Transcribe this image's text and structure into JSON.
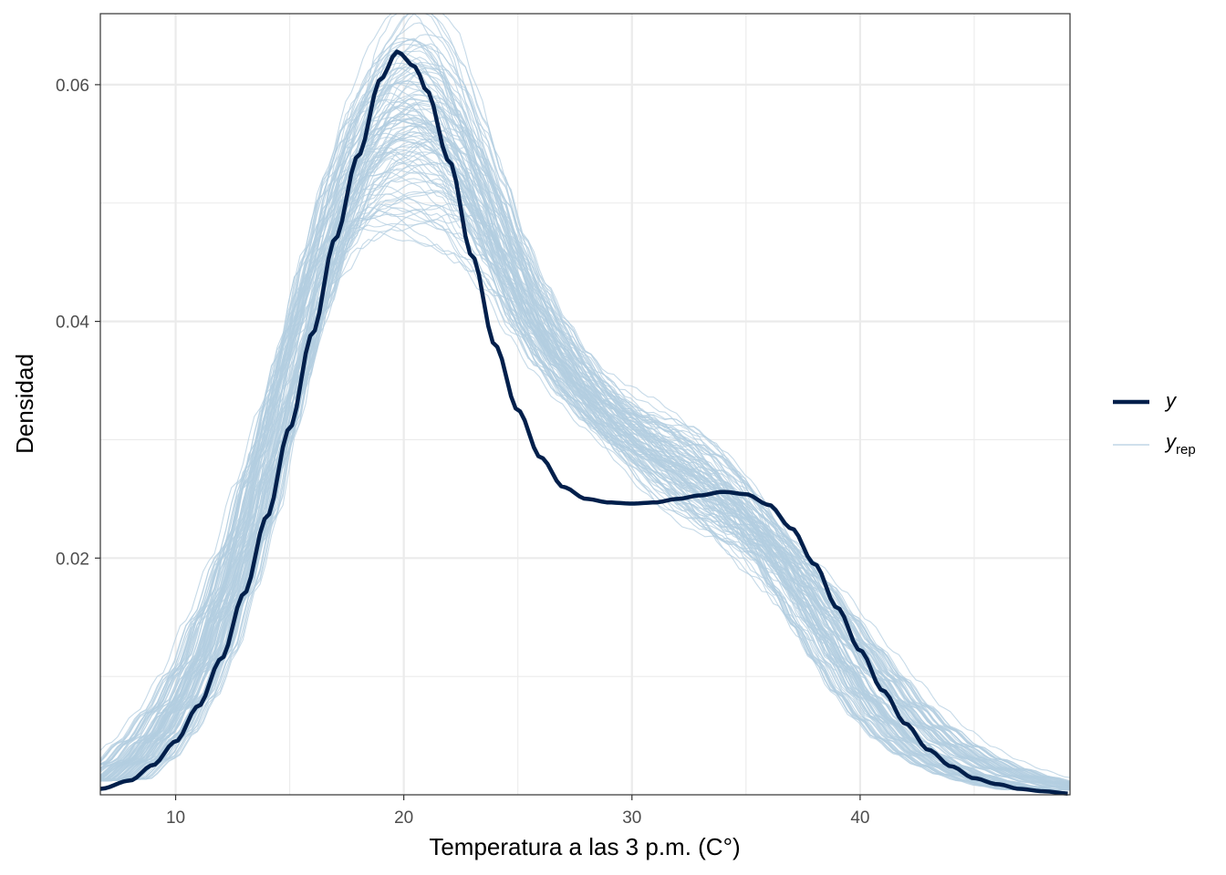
{
  "chart_data": {
    "type": "line",
    "xlabel": "Temperatura a las 3 p.m. (C°)",
    "ylabel": "Densidad",
    "xlim": [
      6.7,
      49.2
    ],
    "ylim": [
      0.0,
      0.066
    ],
    "x_ticks": [
      10,
      20,
      30,
      40
    ],
    "y_ticks": [
      0.02,
      0.04,
      0.06
    ],
    "x_tick_labels": [
      "10",
      "20",
      "30",
      "40"
    ],
    "y_tick_labels": [
      "0.02",
      "0.04",
      "0.06"
    ],
    "grid": true,
    "legend_position": "right",
    "colors": {
      "y": "#011f4b",
      "y_rep": "#b3cde0",
      "grid": "#ebebeb",
      "panel_border": "#333333"
    },
    "series": [
      {
        "name": "y",
        "x": [
          6.7,
          8,
          9,
          10,
          11,
          12,
          13,
          14,
          15,
          16,
          17,
          18,
          19,
          19.7,
          20.5,
          21,
          22,
          23,
          24,
          25,
          26,
          27,
          28,
          29,
          30,
          31,
          32,
          33,
          34,
          35,
          36,
          37,
          38,
          39,
          40,
          41,
          42,
          43,
          44,
          45,
          46,
          47,
          48,
          49.2
        ],
        "y": [
          0.0005,
          0.0012,
          0.0025,
          0.0045,
          0.0075,
          0.0115,
          0.017,
          0.0235,
          0.031,
          0.039,
          0.047,
          0.054,
          0.0605,
          0.0628,
          0.0615,
          0.0595,
          0.0535,
          0.0455,
          0.038,
          0.0325,
          0.0285,
          0.026,
          0.025,
          0.0247,
          0.0246,
          0.0247,
          0.025,
          0.0253,
          0.0256,
          0.0254,
          0.0245,
          0.0225,
          0.0195,
          0.0158,
          0.0122,
          0.0088,
          0.006,
          0.0038,
          0.0024,
          0.0014,
          0.0009,
          0.0005,
          0.0003,
          0.0001
        ]
      },
      {
        "name": "y_rep",
        "x": [
          6.7,
          8,
          9,
          10,
          11,
          12,
          13,
          14,
          15,
          16,
          17,
          18,
          19,
          20,
          21,
          22,
          23,
          24,
          25,
          26,
          27,
          28,
          29,
          30,
          31,
          32,
          33,
          34,
          35,
          36,
          37,
          38,
          39,
          40,
          41,
          42,
          43,
          44,
          45,
          46,
          47,
          48,
          49.2
        ],
        "y": [
          0.0012,
          0.0028,
          0.0048,
          0.0075,
          0.011,
          0.016,
          0.0215,
          0.0285,
          0.0355,
          0.0425,
          0.0485,
          0.053,
          0.0555,
          0.0565,
          0.0562,
          0.0545,
          0.051,
          0.047,
          0.0425,
          0.039,
          0.0362,
          0.0338,
          0.0318,
          0.0302,
          0.0288,
          0.0275,
          0.0262,
          0.0248,
          0.0232,
          0.0212,
          0.0188,
          0.016,
          0.0132,
          0.0105,
          0.008,
          0.006,
          0.0044,
          0.0032,
          0.0023,
          0.0016,
          0.0011,
          0.0007,
          0.0004
        ]
      }
    ],
    "legend": [
      {
        "key": "y",
        "label": "y",
        "subscript": ""
      },
      {
        "key": "y_rep",
        "label": "y",
        "subscript": "rep"
      }
    ]
  }
}
